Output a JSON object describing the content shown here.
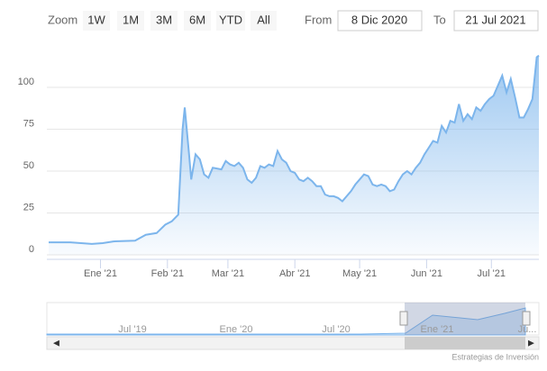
{
  "range_selector": {
    "zoom_label": "Zoom",
    "buttons": [
      "1W",
      "1M",
      "3M",
      "6M",
      "YTD",
      "All"
    ],
    "from_label": "From",
    "from_value": "8 Dic 2020",
    "to_label": "To",
    "to_value": "21 Jul 2021"
  },
  "chart_data": {
    "type": "area",
    "color": "#7cb5ec",
    "x": [
      0,
      10,
      20,
      25,
      30,
      40,
      45,
      50,
      54,
      57,
      60,
      62,
      63,
      65,
      66,
      68,
      70,
      72,
      74,
      76,
      80,
      82,
      84,
      86,
      88,
      90,
      92,
      94,
      96,
      98,
      100,
      102,
      104,
      106,
      108,
      110,
      112,
      114,
      116,
      118,
      120,
      122,
      124,
      126,
      128,
      130,
      132,
      134,
      136,
      138,
      140,
      142,
      144,
      146,
      148,
      150,
      152,
      154,
      156,
      158,
      160,
      162,
      164,
      166,
      168,
      170,
      172,
      174,
      176,
      178,
      180,
      182,
      184,
      186,
      188,
      190,
      192,
      194,
      196,
      198,
      200,
      202,
      204,
      206,
      208,
      210,
      212,
      214,
      216,
      218,
      220,
      222,
      224,
      226,
      227
    ],
    "values": [
      7.5,
      7.5,
      6.5,
      7,
      8,
      8.5,
      12,
      13,
      18,
      20,
      24,
      75,
      88,
      60,
      45,
      60,
      57,
      48,
      46,
      52,
      51,
      56,
      54,
      53,
      55,
      52,
      45,
      43,
      46,
      53,
      52,
      54,
      53,
      62,
      57,
      55,
      50,
      49,
      45,
      44,
      46,
      44,
      41,
      41,
      36,
      35,
      35,
      34,
      32,
      35,
      38,
      42,
      45,
      48,
      47,
      42,
      41,
      42,
      41,
      38,
      39,
      44,
      48,
      50,
      48,
      52,
      55,
      60,
      64,
      68,
      67,
      77,
      73,
      80,
      79,
      90,
      80,
      84,
      81,
      88,
      86,
      90,
      93,
      95,
      101,
      107,
      97,
      105,
      94,
      82,
      82,
      87,
      93,
      118,
      119
    ],
    "xlim": [
      0,
      227
    ],
    "xticks": [
      {
        "value": 24,
        "label": "Ene '21"
      },
      {
        "value": 55,
        "label": "Feb '21"
      },
      {
        "value": 83,
        "label": "Mar '21"
      },
      {
        "value": 114,
        "label": "Abr '21"
      },
      {
        "value": 144,
        "label": "May '21"
      },
      {
        "value": 175,
        "label": "Jun '21"
      },
      {
        "value": 205,
        "label": "Jul '21"
      }
    ],
    "ylim": [
      0,
      125
    ],
    "yticks": [
      0,
      25,
      50,
      75,
      100
    ],
    "grid": true
  },
  "navigator": {
    "labels": [
      "Jul '19",
      "Ene '20",
      "Jul '20",
      "Ene '21",
      "Ju..."
    ]
  },
  "credits": "Estrategias de Inversión"
}
